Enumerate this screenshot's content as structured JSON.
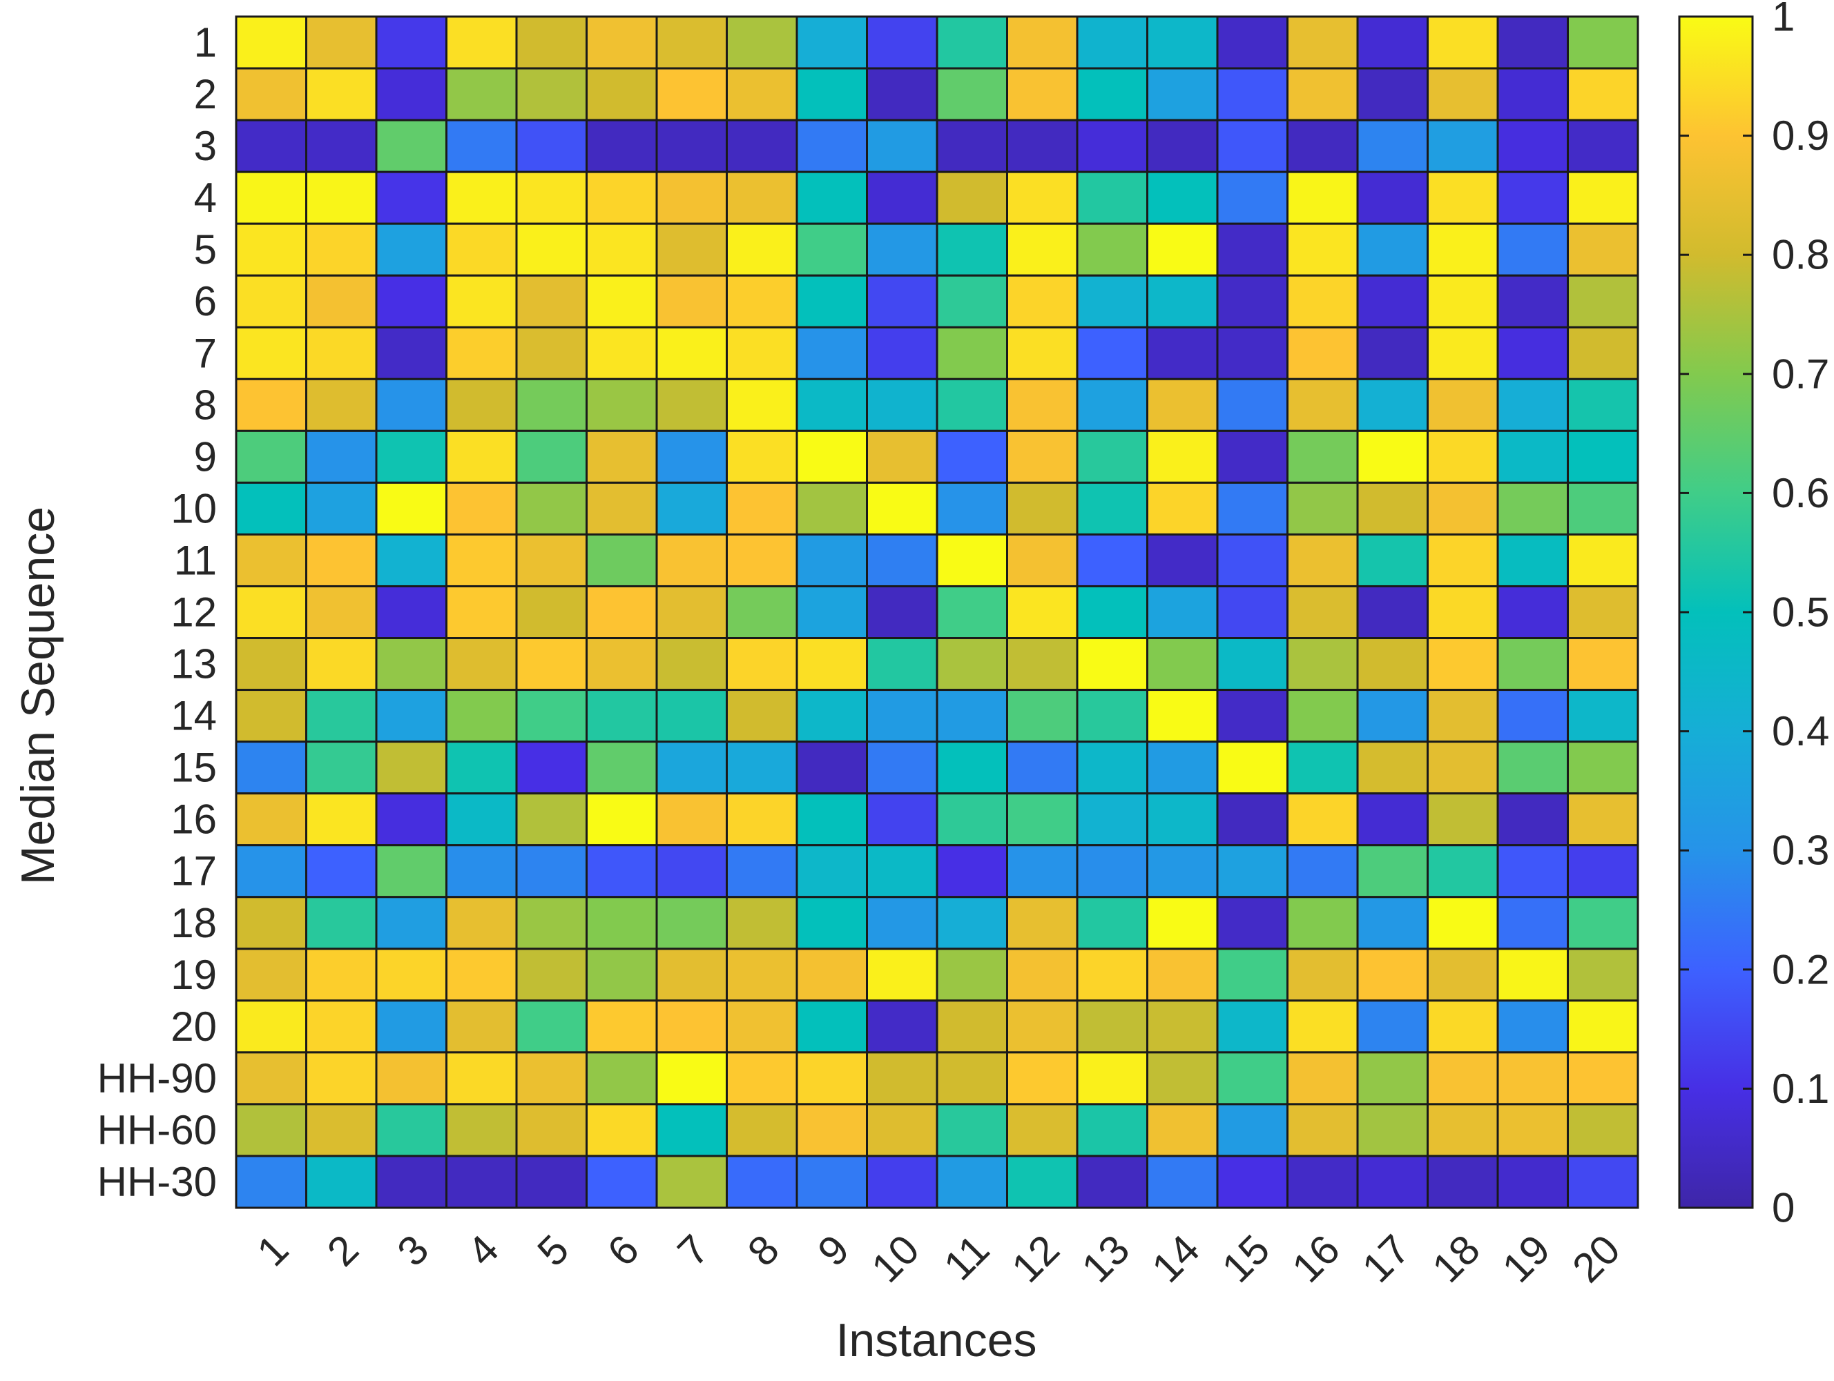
{
  "chart_data": {
    "type": "heatmap",
    "xlabel": "Instances",
    "ylabel": "Median Sequence",
    "x_categories": [
      "1",
      "2",
      "3",
      "4",
      "5",
      "6",
      "7",
      "8",
      "9",
      "10",
      "11",
      "12",
      "13",
      "14",
      "15",
      "16",
      "17",
      "18",
      "19",
      "20"
    ],
    "y_categories": [
      "1",
      "2",
      "3",
      "4",
      "5",
      "6",
      "7",
      "8",
      "9",
      "10",
      "11",
      "12",
      "13",
      "14",
      "15",
      "16",
      "17",
      "18",
      "19",
      "20",
      "HH-90",
      "HH-60",
      "HH-30"
    ],
    "values": [
      [
        0.98,
        0.85,
        0.12,
        0.95,
        0.8,
        0.87,
        0.82,
        0.75,
        0.4,
        0.14,
        0.55,
        0.88,
        0.43,
        0.45,
        0.05,
        0.85,
        0.07,
        0.95,
        0.04,
        0.7
      ],
      [
        0.87,
        0.95,
        0.08,
        0.72,
        0.76,
        0.8,
        0.9,
        0.86,
        0.5,
        0.04,
        0.65,
        0.89,
        0.5,
        0.35,
        0.18,
        0.87,
        0.04,
        0.85,
        0.07,
        0.93
      ],
      [
        0.05,
        0.05,
        0.65,
        0.25,
        0.17,
        0.04,
        0.04,
        0.04,
        0.25,
        0.33,
        0.04,
        0.04,
        0.08,
        0.04,
        0.18,
        0.04,
        0.27,
        0.34,
        0.09,
        0.05
      ],
      [
        0.99,
        0.99,
        0.11,
        0.98,
        0.96,
        0.93,
        0.88,
        0.86,
        0.5,
        0.07,
        0.8,
        0.95,
        0.55,
        0.5,
        0.25,
        0.99,
        0.07,
        0.95,
        0.12,
        0.98
      ],
      [
        0.96,
        0.93,
        0.35,
        0.94,
        0.98,
        0.96,
        0.83,
        0.98,
        0.6,
        0.32,
        0.52,
        0.98,
        0.7,
        1.0,
        0.05,
        0.96,
        0.33,
        0.98,
        0.25,
        0.86
      ],
      [
        0.95,
        0.88,
        0.1,
        0.96,
        0.84,
        0.98,
        0.89,
        0.92,
        0.5,
        0.15,
        0.57,
        0.93,
        0.42,
        0.45,
        0.05,
        0.93,
        0.07,
        0.97,
        0.05,
        0.76
      ],
      [
        0.96,
        0.94,
        0.05,
        0.92,
        0.82,
        0.96,
        0.98,
        0.95,
        0.3,
        0.13,
        0.7,
        0.95,
        0.2,
        0.05,
        0.05,
        0.9,
        0.04,
        0.97,
        0.09,
        0.8
      ],
      [
        0.9,
        0.83,
        0.3,
        0.8,
        0.68,
        0.73,
        0.78,
        0.98,
        0.46,
        0.43,
        0.55,
        0.89,
        0.35,
        0.86,
        0.25,
        0.85,
        0.41,
        0.87,
        0.4,
        0.53
      ],
      [
        0.62,
        0.3,
        0.52,
        0.95,
        0.62,
        0.85,
        0.3,
        0.95,
        1.0,
        0.85,
        0.2,
        0.89,
        0.56,
        0.98,
        0.05,
        0.68,
        1.0,
        0.94,
        0.46,
        0.5
      ],
      [
        0.5,
        0.35,
        1.0,
        0.9,
        0.72,
        0.84,
        0.38,
        0.9,
        0.74,
        1.0,
        0.3,
        0.8,
        0.52,
        0.93,
        0.25,
        0.72,
        0.8,
        0.88,
        0.68,
        0.62
      ],
      [
        0.86,
        0.9,
        0.42,
        0.91,
        0.86,
        0.67,
        0.89,
        0.9,
        0.33,
        0.26,
        1.0,
        0.88,
        0.2,
        0.05,
        0.17,
        0.86,
        0.53,
        0.93,
        0.48,
        0.97
      ],
      [
        0.95,
        0.87,
        0.08,
        0.91,
        0.8,
        0.9,
        0.84,
        0.68,
        0.36,
        0.04,
        0.6,
        0.96,
        0.5,
        0.36,
        0.15,
        0.82,
        0.04,
        0.94,
        0.08,
        0.83
      ],
      [
        0.8,
        0.94,
        0.72,
        0.83,
        0.91,
        0.86,
        0.79,
        0.93,
        0.95,
        0.55,
        0.75,
        0.78,
        1.0,
        0.7,
        0.46,
        0.75,
        0.8,
        0.91,
        0.68,
        0.9
      ],
      [
        0.8,
        0.56,
        0.35,
        0.7,
        0.6,
        0.55,
        0.54,
        0.8,
        0.45,
        0.33,
        0.33,
        0.62,
        0.56,
        1.0,
        0.05,
        0.7,
        0.32,
        0.84,
        0.23,
        0.45
      ],
      [
        0.27,
        0.58,
        0.78,
        0.52,
        0.1,
        0.65,
        0.37,
        0.38,
        0.04,
        0.25,
        0.5,
        0.25,
        0.45,
        0.33,
        1.0,
        0.52,
        0.81,
        0.84,
        0.64,
        0.7
      ],
      [
        0.86,
        0.96,
        0.09,
        0.46,
        0.76,
        1.0,
        0.89,
        0.93,
        0.5,
        0.14,
        0.57,
        0.6,
        0.42,
        0.45,
        0.04,
        0.93,
        0.07,
        0.78,
        0.04,
        0.85
      ],
      [
        0.3,
        0.2,
        0.65,
        0.29,
        0.27,
        0.18,
        0.15,
        0.25,
        0.45,
        0.46,
        0.1,
        0.3,
        0.29,
        0.32,
        0.35,
        0.25,
        0.62,
        0.55,
        0.18,
        0.13
      ],
      [
        0.8,
        0.56,
        0.34,
        0.85,
        0.73,
        0.7,
        0.68,
        0.78,
        0.5,
        0.32,
        0.4,
        0.85,
        0.55,
        1.0,
        0.05,
        0.7,
        0.32,
        1.0,
        0.23,
        0.6
      ],
      [
        0.84,
        0.92,
        0.93,
        0.91,
        0.78,
        0.72,
        0.84,
        0.86,
        0.88,
        0.98,
        0.73,
        0.88,
        0.93,
        0.89,
        0.6,
        0.84,
        0.9,
        0.84,
        0.99,
        0.76
      ],
      [
        0.97,
        0.93,
        0.33,
        0.84,
        0.6,
        0.91,
        0.9,
        0.87,
        0.5,
        0.05,
        0.8,
        0.86,
        0.78,
        0.79,
        0.45,
        0.95,
        0.27,
        0.94,
        0.29,
        0.99
      ],
      [
        0.85,
        0.93,
        0.88,
        0.94,
        0.86,
        0.72,
        1.0,
        0.91,
        0.93,
        0.8,
        0.8,
        0.91,
        0.98,
        0.78,
        0.6,
        0.88,
        0.72,
        0.89,
        0.89,
        0.9
      ],
      [
        0.76,
        0.82,
        0.56,
        0.78,
        0.83,
        0.94,
        0.5,
        0.81,
        0.89,
        0.83,
        0.56,
        0.82,
        0.54,
        0.87,
        0.33,
        0.84,
        0.74,
        0.85,
        0.86,
        0.78
      ],
      [
        0.27,
        0.46,
        0.04,
        0.04,
        0.04,
        0.2,
        0.75,
        0.22,
        0.25,
        0.13,
        0.33,
        0.52,
        0.04,
        0.25,
        0.1,
        0.05,
        0.07,
        0.04,
        0.06,
        0.15
      ]
    ],
    "colorbar": {
      "colormap": "parula",
      "min": 0,
      "max": 1,
      "ticks": [
        "0",
        "0.1",
        "0.2",
        "0.3",
        "0.4",
        "0.5",
        "0.6",
        "0.7",
        "0.8",
        "0.9",
        "1"
      ]
    },
    "grid": true,
    "colorbar_position": "right"
  }
}
